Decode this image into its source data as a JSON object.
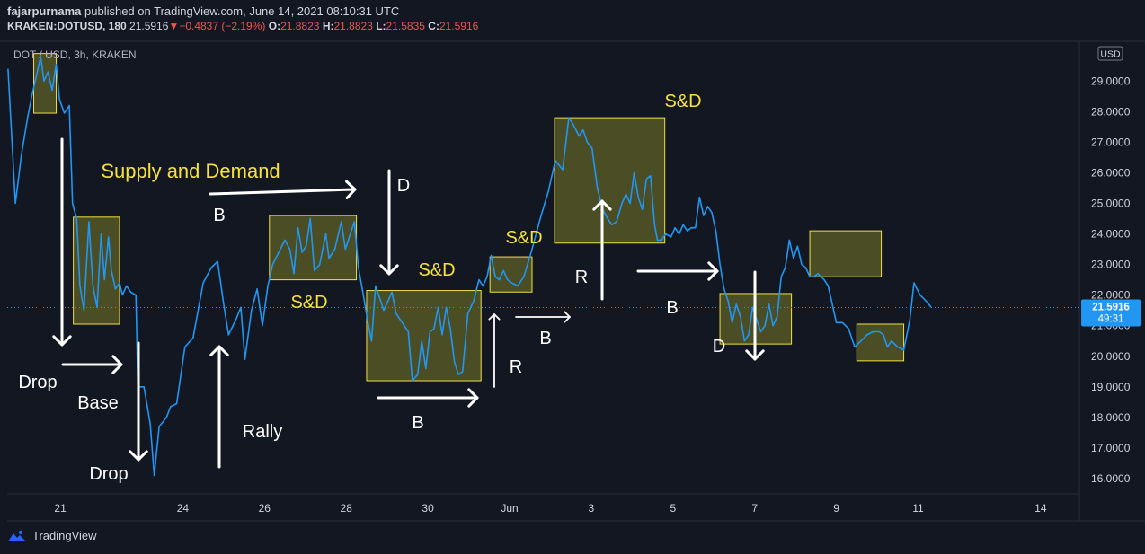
{
  "header": {
    "publisher": "fajarpurnama",
    "published_text": "published on TradingView.com, June 14, 2021 08:10:31 UTC",
    "symbol": "KRAKEN:DOTUSD, 180",
    "last": "21.5916",
    "change_arrow": "▼",
    "change": "−0.4837 (−2.19%)",
    "open_label": "O:",
    "open": "21.8823",
    "high_label": "H:",
    "high": "21.8823",
    "low_label": "L:",
    "low": "21.5835",
    "close_label": "C:",
    "close": "21.5916"
  },
  "pane_title": "DOT / USD, 3h, KRAKEN",
  "currency": "USD",
  "price_tag": {
    "price": "21.5916",
    "countdown": "49:31"
  },
  "footer": {
    "brand": "TradingView"
  },
  "colors": {
    "background": "#131722",
    "line": "#2196f3",
    "box_border": "#f0e040",
    "box_fill": "#7a7a28",
    "label_yellow": "#f5e33b",
    "negative": "#ef5350",
    "tag_bg": "#2196f3"
  },
  "chart_data": {
    "type": "line",
    "title": "DOT / USD, 3h, KRAKEN",
    "ylim": [
      15.5,
      30.3
    ],
    "y_ticks": [
      "16.0000",
      "17.0000",
      "18.0000",
      "19.0000",
      "20.0000",
      "21.0000",
      "22.0000",
      "23.0000",
      "24.0000",
      "25.0000",
      "26.0000",
      "27.0000",
      "28.0000",
      "29.0000"
    ],
    "x_ticks": [
      "21",
      "24",
      "26",
      "28",
      "30",
      "Jun",
      "3",
      "5",
      "7",
      "9",
      "11",
      "14"
    ],
    "x_tick_day": [
      21,
      24,
      26,
      28,
      30,
      32,
      34,
      36,
      38,
      40,
      42,
      45
    ],
    "x_range": [
      19.7,
      45.95
    ],
    "series": [
      {
        "values": [
          [
            19.72,
            29.4
          ],
          [
            19.9,
            25.0
          ],
          [
            20.05,
            26.6
          ],
          [
            20.2,
            27.8
          ],
          [
            20.3,
            28.5
          ],
          [
            20.42,
            29.2
          ],
          [
            20.52,
            29.8
          ],
          [
            20.6,
            29.0
          ],
          [
            20.7,
            29.3
          ],
          [
            20.8,
            28.7
          ],
          [
            20.9,
            29.55
          ],
          [
            20.98,
            28.4
          ],
          [
            21.1,
            27.95
          ],
          [
            21.22,
            28.2
          ],
          [
            21.3,
            25.0
          ],
          [
            21.4,
            24.5
          ],
          [
            21.48,
            22.3
          ],
          [
            21.58,
            21.5
          ],
          [
            21.7,
            24.4
          ],
          [
            21.8,
            22.3
          ],
          [
            21.9,
            21.6
          ],
          [
            22.0,
            24.0
          ],
          [
            22.08,
            22.5
          ],
          [
            22.18,
            23.9
          ],
          [
            22.25,
            22.8
          ],
          [
            22.35,
            22.2
          ],
          [
            22.45,
            22.4
          ],
          [
            22.52,
            22.0
          ],
          [
            22.62,
            22.3
          ],
          [
            22.72,
            22.1
          ],
          [
            22.85,
            22.0
          ],
          [
            22.9,
            19.0
          ],
          [
            23.05,
            19.0
          ],
          [
            23.2,
            17.8
          ],
          [
            23.3,
            16.1
          ],
          [
            23.42,
            17.7
          ],
          [
            23.6,
            18.0
          ],
          [
            23.7,
            18.35
          ],
          [
            23.85,
            18.45
          ],
          [
            24.05,
            20.3
          ],
          [
            24.25,
            20.6
          ],
          [
            24.5,
            22.4
          ],
          [
            24.7,
            22.9
          ],
          [
            24.85,
            23.1
          ],
          [
            25.0,
            21.7
          ],
          [
            25.12,
            20.7
          ],
          [
            25.3,
            21.2
          ],
          [
            25.42,
            21.6
          ],
          [
            25.52,
            19.9
          ],
          [
            25.68,
            21.5
          ],
          [
            25.82,
            22.2
          ],
          [
            25.95,
            21.0
          ],
          [
            26.08,
            22.3
          ],
          [
            26.2,
            23.0
          ],
          [
            26.35,
            23.4
          ],
          [
            26.5,
            23.8
          ],
          [
            26.62,
            23.5
          ],
          [
            26.72,
            22.7
          ],
          [
            26.82,
            24.2
          ],
          [
            26.92,
            23.4
          ],
          [
            27.02,
            23.6
          ],
          [
            27.12,
            24.5
          ],
          [
            27.22,
            22.8
          ],
          [
            27.35,
            23.0
          ],
          [
            27.5,
            24.0
          ],
          [
            27.58,
            23.2
          ],
          [
            27.72,
            23.5
          ],
          [
            27.88,
            24.4
          ],
          [
            27.98,
            23.5
          ],
          [
            28.1,
            24.0
          ],
          [
            28.2,
            24.4
          ],
          [
            28.3,
            22.9
          ],
          [
            28.42,
            22.0
          ],
          [
            28.52,
            21.2
          ],
          [
            28.62,
            20.5
          ],
          [
            28.72,
            22.3
          ],
          [
            28.82,
            21.9
          ],
          [
            28.92,
            21.5
          ],
          [
            29.02,
            21.8
          ],
          [
            29.12,
            22.1
          ],
          [
            29.22,
            21.4
          ],
          [
            29.32,
            21.2
          ],
          [
            29.42,
            21.0
          ],
          [
            29.52,
            20.8
          ],
          [
            29.62,
            19.2
          ],
          [
            29.75,
            19.4
          ],
          [
            29.85,
            20.5
          ],
          [
            29.95,
            19.6
          ],
          [
            30.05,
            20.8
          ],
          [
            30.15,
            20.9
          ],
          [
            30.25,
            21.6
          ],
          [
            30.35,
            20.7
          ],
          [
            30.45,
            21.6
          ],
          [
            30.55,
            20.9
          ],
          [
            30.65,
            19.8
          ],
          [
            30.75,
            19.4
          ],
          [
            30.85,
            19.5
          ],
          [
            30.98,
            21.4
          ],
          [
            31.12,
            21.8
          ],
          [
            31.25,
            22.5
          ],
          [
            31.35,
            22.3
          ],
          [
            31.45,
            22.6
          ],
          [
            31.55,
            23.3
          ],
          [
            31.65,
            22.6
          ],
          [
            31.75,
            22.5
          ],
          [
            31.85,
            22.8
          ],
          [
            31.95,
            22.5
          ],
          [
            32.05,
            22.4
          ],
          [
            32.2,
            22.3
          ],
          [
            32.35,
            22.6
          ],
          [
            32.55,
            23.5
          ],
          [
            32.75,
            24.5
          ],
          [
            32.95,
            25.4
          ],
          [
            33.12,
            26.4
          ],
          [
            33.3,
            26.1
          ],
          [
            33.45,
            27.8
          ],
          [
            33.55,
            27.6
          ],
          [
            33.7,
            27.2
          ],
          [
            33.8,
            27.4
          ],
          [
            33.9,
            27.0
          ],
          [
            34.02,
            26.8
          ],
          [
            34.15,
            25.5
          ],
          [
            34.28,
            24.8
          ],
          [
            34.4,
            24.5
          ],
          [
            34.5,
            24.3
          ],
          [
            34.62,
            24.4
          ],
          [
            34.75,
            25.0
          ],
          [
            34.85,
            25.3
          ],
          [
            34.95,
            25.0
          ],
          [
            35.05,
            26.0
          ],
          [
            35.15,
            25.2
          ],
          [
            35.25,
            24.8
          ],
          [
            35.35,
            25.8
          ],
          [
            35.45,
            25.9
          ],
          [
            35.55,
            24.3
          ],
          [
            35.62,
            23.8
          ],
          [
            35.72,
            23.8
          ],
          [
            35.82,
            24.0
          ],
          [
            35.95,
            23.9
          ],
          [
            36.05,
            24.2
          ],
          [
            36.15,
            24.0
          ],
          [
            36.25,
            24.3
          ],
          [
            36.35,
            24.1
          ],
          [
            36.45,
            24.2
          ],
          [
            36.55,
            24.2
          ],
          [
            36.65,
            25.2
          ],
          [
            36.75,
            24.6
          ],
          [
            36.85,
            24.9
          ],
          [
            36.95,
            24.7
          ],
          [
            37.05,
            24.1
          ],
          [
            37.15,
            23.0
          ],
          [
            37.25,
            22.2
          ],
          [
            37.35,
            21.8
          ],
          [
            37.45,
            21.1
          ],
          [
            37.55,
            21.7
          ],
          [
            37.65,
            21.3
          ],
          [
            37.75,
            20.5
          ],
          [
            37.85,
            20.7
          ],
          [
            37.95,
            21.6
          ],
          [
            38.05,
            21.2
          ],
          [
            38.15,
            20.8
          ],
          [
            38.25,
            21.0
          ],
          [
            38.35,
            21.7
          ],
          [
            38.45,
            21.0
          ],
          [
            38.55,
            21.3
          ],
          [
            38.65,
            22.6
          ],
          [
            38.75,
            22.9
          ],
          [
            38.85,
            23.8
          ],
          [
            38.95,
            23.2
          ],
          [
            39.05,
            23.6
          ],
          [
            39.15,
            23.0
          ],
          [
            39.25,
            22.9
          ],
          [
            39.35,
            22.6
          ],
          [
            39.45,
            22.6
          ],
          [
            39.55,
            22.7
          ],
          [
            39.7,
            22.5
          ],
          [
            39.8,
            22.3
          ],
          [
            40.0,
            21.1
          ],
          [
            40.15,
            21.1
          ],
          [
            40.3,
            20.9
          ],
          [
            40.45,
            20.3
          ],
          [
            40.6,
            20.5
          ],
          [
            40.75,
            20.7
          ],
          [
            40.9,
            20.8
          ],
          [
            41.05,
            20.8
          ],
          [
            41.15,
            20.7
          ],
          [
            41.25,
            20.3
          ],
          [
            41.35,
            20.5
          ],
          [
            41.5,
            20.3
          ],
          [
            41.65,
            20.2
          ],
          [
            41.8,
            21.2
          ],
          [
            41.9,
            22.4
          ],
          [
            42.05,
            22.0
          ],
          [
            42.2,
            21.8
          ],
          [
            42.32,
            21.6
          ]
        ]
      }
    ],
    "annotation_boxes": [
      {
        "x0": 20.35,
        "x1": 20.9,
        "y0": 27.95,
        "y1": 29.9
      },
      {
        "x0": 21.32,
        "x1": 22.45,
        "y0": 21.05,
        "y1": 24.55
      },
      {
        "x0": 26.12,
        "x1": 28.25,
        "y0": 22.5,
        "y1": 24.6
      },
      {
        "x0": 28.5,
        "x1": 31.3,
        "y0": 19.2,
        "y1": 22.15
      },
      {
        "x0": 31.52,
        "x1": 32.55,
        "y0": 22.1,
        "y1": 23.25
      },
      {
        "x0": 33.1,
        "x1": 35.8,
        "y0": 23.7,
        "y1": 27.8
      },
      {
        "x0": 37.15,
        "x1": 38.9,
        "y0": 20.4,
        "y1": 22.05
      },
      {
        "x0": 39.35,
        "x1": 41.1,
        "y0": 22.6,
        "y1": 24.1
      },
      {
        "x0": 40.5,
        "x1": 41.65,
        "y0": 19.85,
        "y1": 21.05
      }
    ],
    "labels": [
      {
        "text": "Supply and Demand",
        "color": "yellow",
        "size": 22
      },
      {
        "text": "S&D",
        "color": "yellow",
        "size": 20
      },
      {
        "text": "S&D",
        "color": "yellow",
        "size": 20
      },
      {
        "text": "S&D",
        "color": "yellow",
        "size": 20
      },
      {
        "text": "S&D",
        "color": "yellow",
        "size": 20
      },
      {
        "text": "Drop",
        "color": "white",
        "size": 20
      },
      {
        "text": "Base",
        "color": "white",
        "size": 20
      },
      {
        "text": "Drop",
        "color": "white",
        "size": 20
      },
      {
        "text": "Rally",
        "color": "white",
        "size": 20
      },
      {
        "text": "B",
        "color": "white",
        "size": 20
      },
      {
        "text": "D",
        "color": "white",
        "size": 20
      },
      {
        "text": "B",
        "color": "white",
        "size": 20
      },
      {
        "text": "R",
        "color": "white",
        "size": 20
      },
      {
        "text": "B",
        "color": "white",
        "size": 20
      },
      {
        "text": "R",
        "color": "white",
        "size": 20
      },
      {
        "text": "B",
        "color": "white",
        "size": 20
      },
      {
        "text": "D",
        "color": "white",
        "size": 20
      }
    ]
  }
}
